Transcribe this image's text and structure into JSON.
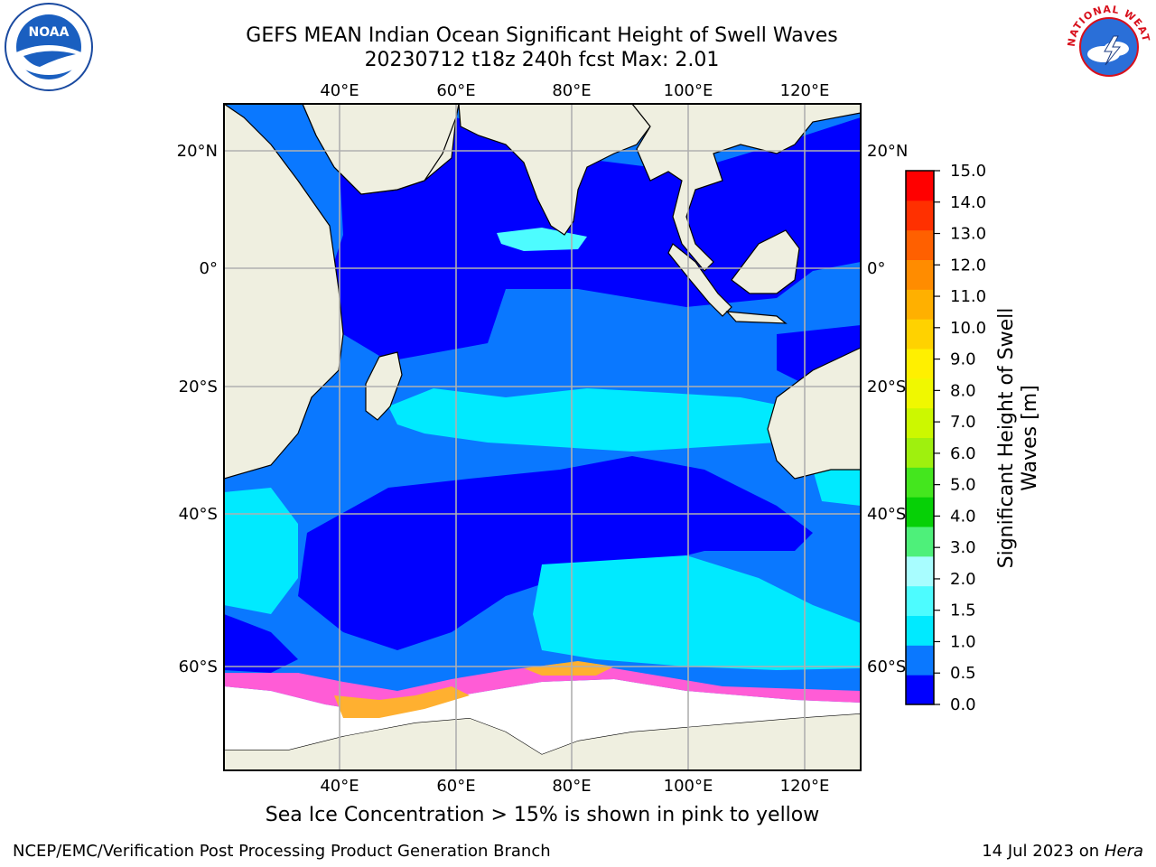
{
  "title": {
    "line1": "GEFS MEAN Indian Ocean Significant Height of Swell Waves",
    "line2": "20230712 t18z 240h fcst   Max: 2.01"
  },
  "map": {
    "lon_ticks": [
      "40°E",
      "60°E",
      "80°E",
      "100°E",
      "120°E"
    ],
    "lat_ticks": [
      "20°N",
      "0°",
      "20°S",
      "40°S",
      "60°S"
    ]
  },
  "colorbar": {
    "label_line1": "Significant Height of Swell",
    "label_line2": "Waves [m]",
    "levels": [
      "0.0",
      "0.5",
      "1.0",
      "1.5",
      "2.0",
      "3.0",
      "4.0",
      "5.0",
      "6.0",
      "7.0",
      "8.0",
      "9.0",
      "10.0",
      "11.0",
      "12.0",
      "13.0",
      "14.0",
      "15.0"
    ],
    "colors": [
      "#0000ff",
      "#0a78ff",
      "#00eaff",
      "#4dfcff",
      "#a8fdff",
      "#4ef07a",
      "#06d006",
      "#44e61e",
      "#9ff00e",
      "#ccf800",
      "#f0f800",
      "#fff000",
      "#ffd200",
      "#ffb000",
      "#ff8c00",
      "#ff6000",
      "#ff3000",
      "#ff0000"
    ]
  },
  "caption": "Sea Ice Concentration > 15% is shown in pink to yellow",
  "footer": {
    "left": "NCEP/EMC/Verification Post Processing Product Generation Branch",
    "right_prefix": "14 Jul 2023 on ",
    "right_machine": "Hera"
  },
  "logos": {
    "noaa_text": "NOAA",
    "nws_text": "NATIONAL WEATHER SERVICE"
  },
  "map_colors": {
    "land": "#efefe0",
    "ocean_low": "#0000ff",
    "ocean_mid": "#0a78ff",
    "ocean_high": "#00eaff",
    "ocean_peak": "#4dfcff",
    "ice_pink": "#ff5cd6",
    "ice_orange": "#ffb030",
    "grid": "#b0b0b0"
  }
}
